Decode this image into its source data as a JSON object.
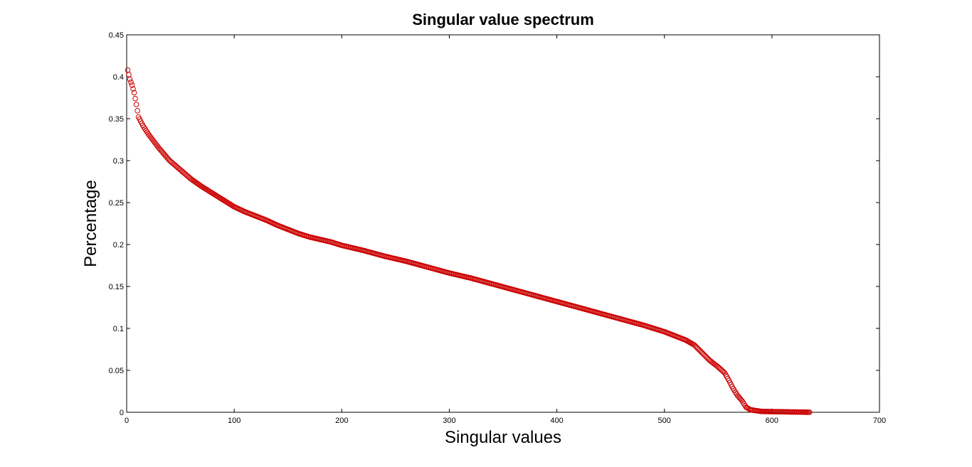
{
  "chart_data": {
    "type": "scatter",
    "title": "Singular value spectrum",
    "xlabel": "Singular values",
    "ylabel": "Percentage",
    "xlim": [
      0,
      700
    ],
    "ylim": [
      0,
      0.45
    ],
    "xticks": [
      0,
      100,
      200,
      300,
      400,
      500,
      600,
      700
    ],
    "yticks": [
      0,
      0.05,
      0.1,
      0.15,
      0.2,
      0.25,
      0.3,
      0.35,
      0.4,
      0.45
    ],
    "xtick_labels": [
      "0",
      "100",
      "200",
      "300",
      "400",
      "500",
      "600",
      "700"
    ],
    "ytick_labels": [
      "0",
      "0.05",
      "0.1",
      "0.15",
      "0.2",
      "0.25",
      "0.3",
      "0.35",
      "0.4",
      "0.45"
    ],
    "grid": false,
    "marker": "open-circle",
    "marker_color": "#cc0000",
    "series": [
      {
        "curve_points": [
          [
            1,
            0.408
          ],
          [
            3,
            0.397
          ],
          [
            5,
            0.39
          ],
          [
            7,
            0.381
          ],
          [
            9,
            0.367
          ],
          [
            11,
            0.352
          ],
          [
            15,
            0.342
          ],
          [
            20,
            0.332
          ],
          [
            30,
            0.315
          ],
          [
            40,
            0.3
          ],
          [
            50,
            0.289
          ],
          [
            60,
            0.278
          ],
          [
            70,
            0.269
          ],
          [
            80,
            0.261
          ],
          [
            90,
            0.253
          ],
          [
            100,
            0.245
          ],
          [
            110,
            0.239
          ],
          [
            120,
            0.234
          ],
          [
            130,
            0.229
          ],
          [
            140,
            0.223
          ],
          [
            150,
            0.218
          ],
          [
            160,
            0.213
          ],
          [
            170,
            0.209
          ],
          [
            180,
            0.206
          ],
          [
            190,
            0.203
          ],
          [
            200,
            0.199
          ],
          [
            220,
            0.193
          ],
          [
            240,
            0.186
          ],
          [
            260,
            0.18
          ],
          [
            280,
            0.173
          ],
          [
            300,
            0.166
          ],
          [
            320,
            0.16
          ],
          [
            340,
            0.153
          ],
          [
            360,
            0.146
          ],
          [
            380,
            0.139
          ],
          [
            400,
            0.132
          ],
          [
            420,
            0.125
          ],
          [
            440,
            0.118
          ],
          [
            460,
            0.111
          ],
          [
            480,
            0.104
          ],
          [
            500,
            0.096
          ],
          [
            510,
            0.091
          ],
          [
            520,
            0.086
          ],
          [
            528,
            0.08
          ],
          [
            535,
            0.071
          ],
          [
            542,
            0.062
          ],
          [
            550,
            0.054
          ],
          [
            556,
            0.047
          ],
          [
            560,
            0.038
          ],
          [
            564,
            0.028
          ],
          [
            568,
            0.02
          ],
          [
            572,
            0.014
          ],
          [
            576,
            0.006
          ],
          [
            580,
            0.003
          ],
          [
            590,
            0.001
          ],
          [
            635,
            0.0
          ]
        ]
      }
    ]
  }
}
